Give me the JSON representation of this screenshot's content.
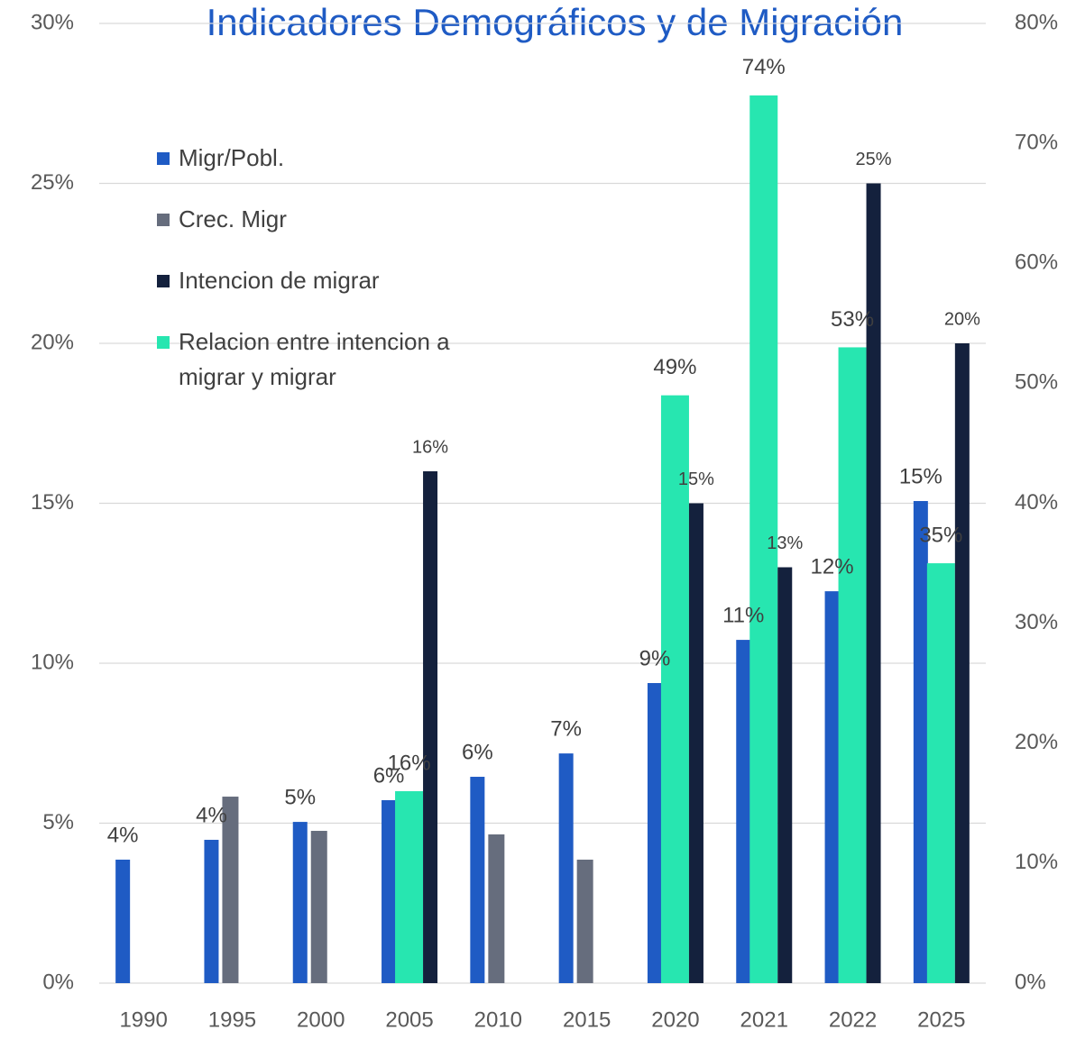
{
  "chart_data": {
    "type": "bar",
    "title": "Indicadores Demográficos y de Migración",
    "categories": [
      "1990",
      "1995",
      "2000",
      "2005",
      "2010",
      "2015",
      "2020",
      "2021",
      "2022",
      "2025"
    ],
    "series": [
      {
        "name": "Migr/Pobl.",
        "color": "#1f5bc4",
        "values": [
          3.86,
          4.48,
          5.04,
          5.72,
          6.45,
          7.18,
          9.38,
          10.73,
          12.25,
          15.07
        ],
        "value_labels": [
          "4%",
          "4%",
          "5%",
          "6%",
          "6%",
          "7%",
          "9%",
          "11%",
          "12%",
          "15%"
        ]
      },
      {
        "name": "Crec. Migr",
        "color": "#666d7d",
        "values": [
          null,
          5.83,
          4.76,
          null,
          4.65,
          3.86,
          null,
          null,
          null,
          null
        ]
      },
      {
        "name": "Intencion de migrar",
        "color": "#14213d",
        "values": [
          null,
          null,
          null,
          16,
          null,
          null,
          15,
          13,
          25,
          20
        ],
        "value_labels": [
          null,
          null,
          null,
          "16%",
          null,
          null,
          "15%",
          "13%",
          "25%",
          "20%"
        ]
      },
      {
        "name": "Relacion entre intencion a migrar y migrar",
        "color": "#27e6b0",
        "axis": "y2",
        "values": [
          null,
          null,
          null,
          16,
          null,
          null,
          49,
          74,
          53,
          35
        ],
        "value_labels": [
          null,
          null,
          null,
          "16%",
          null,
          null,
          "49%",
          "74%",
          "53%",
          "35%"
        ]
      }
    ],
    "ylim": [
      0,
      30
    ],
    "yticks": [
      {
        "value": 0,
        "label": "0%"
      },
      {
        "value": 5,
        "label": "5%"
      },
      {
        "value": 10,
        "label": "10%"
      },
      {
        "value": 15,
        "label": "15%"
      },
      {
        "value": 20,
        "label": "20%"
      },
      {
        "value": 25,
        "label": "25%"
      },
      {
        "value": 30,
        "label": "30%"
      }
    ],
    "y2lim": [
      0,
      80
    ],
    "y2ticks": [
      {
        "value": 0,
        "label": "0%"
      },
      {
        "value": 10,
        "label": "10%"
      },
      {
        "value": 20,
        "label": "20%"
      },
      {
        "value": 30,
        "label": "30%"
      },
      {
        "value": 40,
        "label": "40%"
      },
      {
        "value": 50,
        "label": "50%"
      },
      {
        "value": 60,
        "label": "60%"
      },
      {
        "value": 70,
        "label": "70%"
      },
      {
        "value": 80,
        "label": "80%"
      }
    ],
    "grid": true,
    "legend": "top-left"
  }
}
